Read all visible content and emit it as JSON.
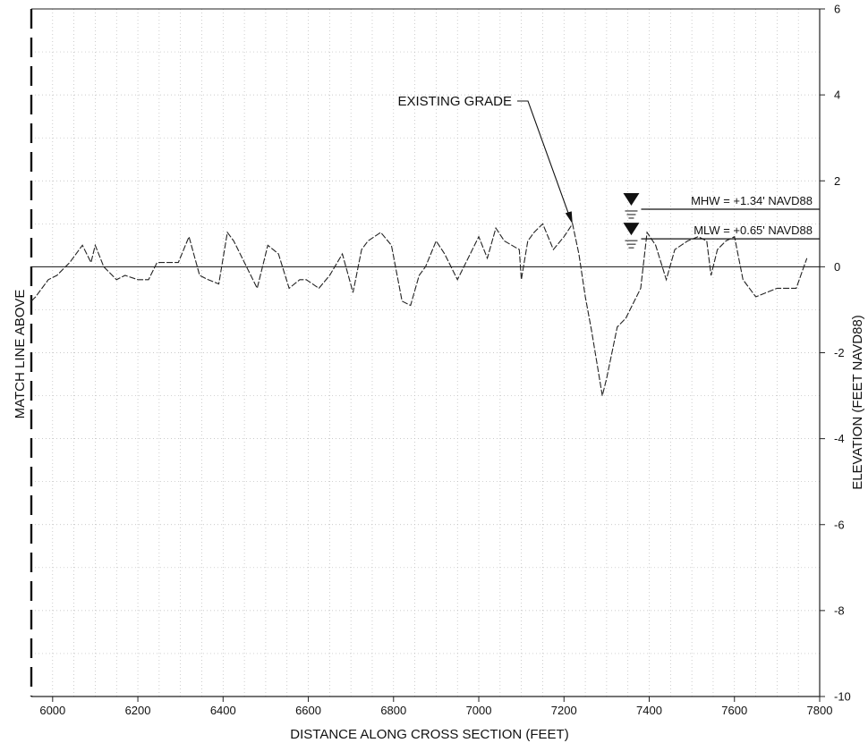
{
  "chart_data": {
    "type": "line",
    "title": "",
    "xlabel": "DISTANCE ALONG CROSS SECTION (FEET)",
    "ylabel": "ELEVATION (FEET NAVD88)",
    "left_label": "MATCH LINE ABOVE",
    "xlim": [
      5950,
      7800
    ],
    "ylim": [
      -10,
      6
    ],
    "x_ticks": [
      6000,
      6200,
      6400,
      6600,
      6800,
      7000,
      7200,
      7400,
      7600,
      7800
    ],
    "y_ticks": [
      -10,
      -8,
      -6,
      -4,
      -2,
      0,
      2,
      4,
      6
    ],
    "x_tick_labels": [
      "6000",
      "6200",
      "6400",
      "6600",
      "6800",
      "7000",
      "7200",
      "7400",
      "7600",
      "7800"
    ],
    "y_tick_labels": [
      "-10",
      "-8",
      "-6",
      "-4",
      "-2",
      "0",
      "2",
      "4",
      "6"
    ],
    "grid": true,
    "series": [
      {
        "name": "EXISTING GRADE",
        "style": "dashed",
        "x": [
          5950,
          5960,
          5990,
          6010,
          6040,
          6070,
          6090,
          6100,
          6120,
          6150,
          6170,
          6200,
          6225,
          6245,
          6280,
          6295,
          6320,
          6345,
          6365,
          6390,
          6410,
          6425,
          6460,
          6480,
          6505,
          6530,
          6555,
          6580,
          6595,
          6625,
          6650,
          6680,
          6705,
          6725,
          6740,
          6770,
          6795,
          6820,
          6840,
          6860,
          6875,
          6900,
          6920,
          6950,
          6980,
          7000,
          7020,
          7040,
          7060,
          7095,
          7100,
          7115,
          7130,
          7150,
          7175,
          7200,
          7220,
          7235,
          7250,
          7265,
          7290,
          7300,
          7325,
          7345,
          7380,
          7395,
          7415,
          7440,
          7460,
          7490,
          7515,
          7535,
          7545,
          7560,
          7580,
          7600,
          7620,
          7650,
          7700,
          7745,
          7770
        ],
        "y": [
          -0.8,
          -0.7,
          -0.3,
          -0.2,
          0.1,
          0.5,
          0.1,
          0.5,
          0.0,
          -0.3,
          -0.2,
          -0.3,
          -0.3,
          0.1,
          0.1,
          0.1,
          0.7,
          -0.2,
          -0.3,
          -0.4,
          0.8,
          0.6,
          -0.1,
          -0.5,
          0.5,
          0.3,
          -0.5,
          -0.3,
          -0.3,
          -0.5,
          -0.2,
          0.3,
          -0.6,
          0.4,
          0.6,
          0.8,
          0.5,
          -0.8,
          -0.9,
          -0.2,
          0.0,
          0.6,
          0.3,
          -0.3,
          0.3,
          0.7,
          0.2,
          0.9,
          0.6,
          0.4,
          -0.3,
          0.6,
          0.8,
          1.0,
          0.4,
          0.7,
          1.0,
          0.3,
          -0.7,
          -1.5,
          -3.0,
          -2.6,
          -1.4,
          -1.2,
          -0.5,
          0.8,
          0.5,
          -0.3,
          0.4,
          0.6,
          0.7,
          0.6,
          -0.2,
          0.4,
          0.6,
          0.7,
          -0.3,
          -0.7,
          -0.5,
          -0.5,
          0.2
        ]
      }
    ],
    "annotations": [
      {
        "text": "EXISTING GRADE",
        "target": [
          7220,
          1.0
        ]
      },
      {
        "text": "MHW = +1.34' NAVD88",
        "y": 1.34,
        "x_start": 7360
      },
      {
        "text": "MLW = +0.65' NAVD88",
        "y": 0.65,
        "x_start": 7360
      }
    ]
  }
}
